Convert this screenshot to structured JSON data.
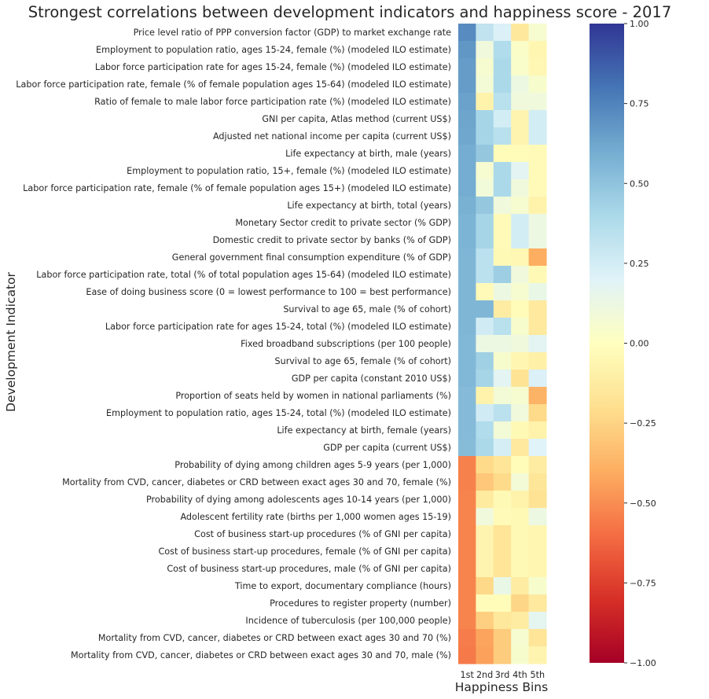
{
  "chart_data": {
    "type": "heatmap",
    "title": "Strongest correlations between development indicators and happiness score - 2017",
    "xlabel": "Happiness Bins",
    "ylabel": "Development Indicator",
    "columns": [
      "1st",
      "2nd",
      "3rd",
      "4th",
      "5th"
    ],
    "rows": [
      "Price level ratio of PPP conversion factor (GDP) to market exchange rate",
      "Employment to population ratio, ages 15-24, female (%) (modeled ILO estimate)",
      "Labor force participation rate for ages 15-24, female (%) (modeled ILO estimate)",
      "Labor force participation rate, female (% of female population ages 15-64) (modeled ILO estimate)",
      "Ratio of female to male labor force participation rate (%) (modeled ILO estimate)",
      "GNI per capita, Atlas method (current US$)",
      "Adjusted net national income per capita (current US$)",
      "Life expectancy at birth, male (years)",
      "Employment to population ratio, 15+, female (%) (modeled ILO estimate)",
      "Labor force participation rate, female (% of female population ages 15+) (modeled ILO estimate)",
      "Life expectancy at birth, total (years)",
      "Monetary Sector credit to private sector (% GDP)",
      "Domestic credit to private sector by banks (% of GDP)",
      "General government final consumption expenditure (% of GDP)",
      "Labor force participation rate, total (% of total population ages 15-64) (modeled ILO estimate)",
      "Ease of doing business score (0 = lowest performance to 100 = best performance)",
      "Survival to age 65, male (% of cohort)",
      "Labor force participation rate for ages 15-24, total (%) (modeled ILO estimate)",
      "Fixed broadband subscriptions (per 100 people)",
      "Survival to age 65, female (% of cohort)",
      "GDP per capita (constant 2010 US$)",
      "Proportion of seats held by women in national parliaments (%)",
      "Employment to population ratio, ages 15-24, total (%) (modeled ILO estimate)",
      "Life expectancy at birth, female (years)",
      "GDP per capita (current US$)",
      "Probability of dying among children ages 5-9 years (per 1,000)",
      "Mortality from CVD, cancer, diabetes or CRD between exact ages 30 and 70, female (%)",
      "Probability of dying among adolescents ages 10-14 years (per 1,000)",
      "Adolescent fertility rate (births per 1,000 women ages 15-19)",
      "Cost of business start-up procedures (% of GNI per capita)",
      "Cost of business start-up procedures, female (% of GNI per capita)",
      "Cost of business start-up procedures, male (% of GNI per capita)",
      "Time to export, documentary compliance (hours)",
      "Procedures to register property (number)",
      "Incidence of tuberculosis (per 100,000 people)",
      "Mortality from CVD, cancer, diabetes or CRD between exact ages 30 and 70 (%)",
      "Mortality from CVD, cancer, diabetes or CRD between exact ages 30 and 70, male (%)"
    ],
    "values": [
      [
        0.72,
        0.32,
        0.22,
        -0.15,
        0.06
      ],
      [
        0.68,
        0.1,
        0.38,
        0.03,
        -0.06
      ],
      [
        0.66,
        0.06,
        0.4,
        0.04,
        -0.05
      ],
      [
        0.66,
        0.08,
        0.4,
        0.12,
        0.05
      ],
      [
        0.64,
        -0.08,
        0.35,
        0.1,
        0.1
      ],
      [
        0.63,
        0.42,
        0.25,
        -0.07,
        0.25
      ],
      [
        0.62,
        0.42,
        0.35,
        -0.07,
        0.25
      ],
      [
        0.6,
        0.48,
        -0.02,
        -0.02,
        -0.03
      ],
      [
        0.6,
        0.06,
        0.4,
        0.18,
        -0.03
      ],
      [
        0.6,
        0.09,
        0.4,
        0.1,
        -0.03
      ],
      [
        0.58,
        0.48,
        0.1,
        0.06,
        -0.08
      ],
      [
        0.57,
        0.42,
        -0.03,
        0.25,
        0.12
      ],
      [
        0.57,
        0.42,
        -0.03,
        0.25,
        0.12
      ],
      [
        0.56,
        0.34,
        -0.04,
        -0.05,
        -0.4
      ],
      [
        0.56,
        0.34,
        0.45,
        0.1,
        -0.04
      ],
      [
        0.56,
        -0.03,
        0.12,
        0.06,
        0.14
      ],
      [
        0.56,
        0.56,
        -0.12,
        -0.02,
        -0.14
      ],
      [
        0.56,
        0.26,
        0.35,
        0.05,
        -0.14
      ],
      [
        0.55,
        0.12,
        0.12,
        0.1,
        0.18
      ],
      [
        0.55,
        0.44,
        0.05,
        -0.06,
        -0.1
      ],
      [
        0.55,
        0.42,
        0.18,
        -0.18,
        0.22
      ],
      [
        0.54,
        -0.08,
        0.08,
        0.06,
        -0.38
      ],
      [
        0.54,
        0.26,
        0.34,
        0.1,
        -0.22
      ],
      [
        0.54,
        0.38,
        0.08,
        -0.04,
        -0.08
      ],
      [
        0.53,
        0.4,
        0.24,
        -0.14,
        0.2
      ],
      [
        -0.54,
        -0.22,
        -0.17,
        -0.02,
        -0.12
      ],
      [
        -0.54,
        -0.3,
        -0.22,
        0.08,
        -0.16
      ],
      [
        -0.53,
        -0.13,
        -0.04,
        -0.08,
        -0.18
      ],
      [
        -0.53,
        0.1,
        -0.03,
        -0.04,
        0.12
      ],
      [
        -0.53,
        -0.07,
        -0.17,
        -0.04,
        -0.06
      ],
      [
        -0.53,
        -0.07,
        -0.17,
        -0.04,
        -0.06
      ],
      [
        -0.53,
        -0.07,
        -0.17,
        -0.04,
        -0.06
      ],
      [
        -0.53,
        -0.23,
        0.14,
        -0.12,
        0.05
      ],
      [
        -0.53,
        -0.02,
        -0.02,
        -0.24,
        -0.14
      ],
      [
        -0.53,
        -0.27,
        -0.15,
        -0.12,
        0.17
      ],
      [
        -0.55,
        -0.43,
        -0.28,
        0.06,
        -0.17
      ],
      [
        -0.56,
        -0.44,
        -0.28,
        0.05,
        -0.07
      ]
    ],
    "colorbar": {
      "colormap": "RdYlBu",
      "vmin": -1.0,
      "vmax": 1.0,
      "ticks": [
        "1.00",
        "0.75",
        "0.50",
        "0.25",
        "0.00",
        "−0.25",
        "−0.50",
        "−0.75",
        "−1.00"
      ]
    }
  }
}
